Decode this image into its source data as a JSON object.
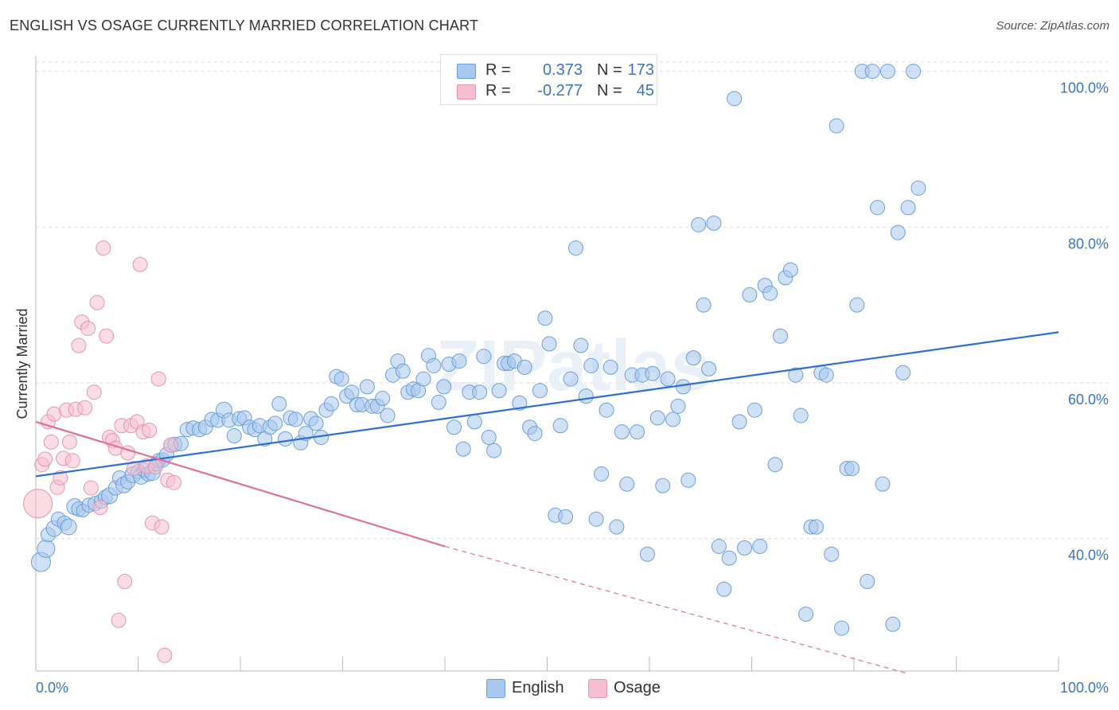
{
  "title": "ENGLISH VS OSAGE CURRENTLY MARRIED CORRELATION CHART",
  "source": "Source: ZipAtlas.com",
  "watermark": "ZIPatlas",
  "legend": {
    "rows": [
      {
        "r_label": "R =",
        "r_value": "0.373",
        "n_label": "N =",
        "n_value": "173",
        "color": "#a9c8ef",
        "border": "#6a9fdc"
      },
      {
        "r_label": "R =",
        "r_value": "-0.277",
        "n_label": "N =",
        "n_value": "45",
        "color": "#f6bfd0",
        "border": "#e793b0"
      }
    ],
    "bottom": [
      {
        "label": "English",
        "color": "#a9c8ef",
        "border": "#6a9fdc"
      },
      {
        "label": "Osage",
        "color": "#f6bfd0",
        "border": "#e793b0"
      }
    ]
  },
  "chart_data": {
    "type": "scatter",
    "title": "ENGLISH VS OSAGE CURRENTLY MARRIED CORRELATION CHART",
    "xlabel": "",
    "ylabel": "Currently Married",
    "xlim": [
      0,
      100
    ],
    "ylim": [
      23,
      102
    ],
    "x_tick_labels": [
      "0.0%",
      "100.0%"
    ],
    "y_ticks": [
      40,
      60,
      80,
      100
    ],
    "y_tick_labels": [
      "40.0%",
      "60.0%",
      "80.0%",
      "100.0%"
    ],
    "grid": true,
    "legend_position": "top-center",
    "colors": {
      "english_fill": "#a9c8ef",
      "english_edge": "#6a9fdc",
      "english_line": "#2f6fd1",
      "osage_fill": "#f6bfd0",
      "osage_edge": "#e793b0",
      "osage_line": "#e0709a",
      "axis_label": "#3b74c7"
    },
    "series": [
      {
        "name": "English",
        "trend": {
          "x": [
            0,
            100
          ],
          "y": [
            48.0,
            66.5
          ],
          "dashed_from": null
        },
        "points": [
          [
            0.5,
            37.0,
            12
          ],
          [
            1.0,
            38.7,
            11
          ],
          [
            1.2,
            40.5,
            9
          ],
          [
            1.8,
            41.3,
            10
          ],
          [
            2.2,
            42.5,
            9
          ],
          [
            2.8,
            42.0,
            9
          ],
          [
            3.2,
            41.5,
            10
          ],
          [
            3.8,
            44.1,
            10
          ],
          [
            4.2,
            43.8,
            9
          ],
          [
            4.6,
            43.6,
            8
          ],
          [
            5.2,
            44.3,
            9
          ],
          [
            5.8,
            44.5,
            9
          ],
          [
            6.4,
            44.8,
            9
          ],
          [
            6.8,
            45.3,
            9
          ],
          [
            7.2,
            45.5,
            10
          ],
          [
            7.8,
            46.5,
            9
          ],
          [
            8.2,
            47.8,
            9
          ],
          [
            8.6,
            46.9,
            10
          ],
          [
            9.0,
            47.3,
            9
          ],
          [
            9.5,
            48.2,
            10
          ],
          [
            10.0,
            48.6,
            9
          ],
          [
            10.3,
            48.0,
            10
          ],
          [
            10.6,
            48.8,
            9
          ],
          [
            11.0,
            48.3,
            9
          ],
          [
            11.4,
            48.5,
            10
          ],
          [
            11.8,
            49.6,
            9
          ],
          [
            12.0,
            50.0,
            9
          ],
          [
            12.4,
            50.1,
            9
          ],
          [
            12.8,
            50.8,
            9
          ],
          [
            13.2,
            52.0,
            9
          ],
          [
            13.6,
            52.1,
            9
          ],
          [
            14.2,
            52.2,
            9
          ],
          [
            14.8,
            54.0,
            9
          ],
          [
            15.4,
            54.2,
            9
          ],
          [
            16.0,
            54.0,
            9
          ],
          [
            16.6,
            54.3,
            9
          ],
          [
            17.2,
            55.3,
            9
          ],
          [
            17.8,
            55.2,
            9
          ],
          [
            18.4,
            56.5,
            10
          ],
          [
            18.9,
            55.2,
            9
          ],
          [
            19.4,
            53.2,
            9
          ],
          [
            19.9,
            55.4,
            9
          ],
          [
            20.4,
            55.5,
            9
          ],
          [
            20.9,
            54.3,
            9
          ],
          [
            21.4,
            54.0,
            9
          ],
          [
            21.9,
            54.5,
            9
          ],
          [
            22.4,
            52.8,
            9
          ],
          [
            22.9,
            54.3,
            9
          ],
          [
            23.4,
            54.8,
            9
          ],
          [
            23.8,
            57.3,
            9
          ],
          [
            24.4,
            52.8,
            9
          ],
          [
            24.9,
            55.5,
            9
          ],
          [
            25.4,
            55.3,
            9
          ],
          [
            25.9,
            52.3,
            9
          ],
          [
            26.4,
            53.5,
            9
          ],
          [
            26.9,
            55.4,
            9
          ],
          [
            27.4,
            54.8,
            9
          ],
          [
            27.9,
            53.0,
            9
          ],
          [
            28.4,
            56.5,
            9
          ],
          [
            28.9,
            57.3,
            9
          ],
          [
            29.4,
            60.8,
            9
          ],
          [
            29.9,
            60.5,
            9
          ],
          [
            30.4,
            58.3,
            9
          ],
          [
            30.9,
            58.8,
            9
          ],
          [
            31.4,
            57.2,
            9
          ],
          [
            31.9,
            57.2,
            9
          ],
          [
            32.4,
            59.5,
            9
          ],
          [
            32.9,
            57.0,
            9
          ],
          [
            33.4,
            57.0,
            9
          ],
          [
            33.9,
            58.0,
            9
          ],
          [
            34.4,
            55.8,
            9
          ],
          [
            34.9,
            61.0,
            9
          ],
          [
            35.4,
            62.8,
            9
          ],
          [
            35.9,
            61.5,
            9
          ],
          [
            36.4,
            58.8,
            9
          ],
          [
            36.9,
            59.2,
            9
          ],
          [
            37.4,
            59.0,
            9
          ],
          [
            37.9,
            60.5,
            9
          ],
          [
            38.4,
            63.5,
            9
          ],
          [
            38.9,
            62.2,
            9
          ],
          [
            39.4,
            57.5,
            9
          ],
          [
            39.9,
            59.5,
            9
          ],
          [
            40.4,
            62.4,
            9
          ],
          [
            40.9,
            54.3,
            9
          ],
          [
            41.4,
            62.8,
            9
          ],
          [
            41.8,
            51.5,
            9
          ],
          [
            42.4,
            58.8,
            9
          ],
          [
            42.9,
            55.0,
            9
          ],
          [
            43.4,
            58.8,
            9
          ],
          [
            43.8,
            63.4,
            9
          ],
          [
            44.3,
            53.0,
            9
          ],
          [
            44.8,
            51.3,
            9
          ],
          [
            45.3,
            59.0,
            9
          ],
          [
            45.8,
            62.5,
            9
          ],
          [
            46.2,
            62.5,
            9
          ],
          [
            46.8,
            62.8,
            9
          ],
          [
            47.3,
            57.4,
            9
          ],
          [
            47.8,
            62.0,
            9
          ],
          [
            48.3,
            54.3,
            9
          ],
          [
            48.8,
            53.5,
            9
          ],
          [
            49.3,
            59.0,
            9
          ],
          [
            49.8,
            68.3,
            9
          ],
          [
            50.2,
            65.0,
            9
          ],
          [
            50.8,
            43.0,
            9
          ],
          [
            51.3,
            54.5,
            9
          ],
          [
            51.8,
            42.8,
            9
          ],
          [
            52.3,
            60.5,
            9
          ],
          [
            52.8,
            77.3,
            9
          ],
          [
            53.3,
            64.8,
            9
          ],
          [
            53.8,
            58.3,
            9
          ],
          [
            54.3,
            62.2,
            9
          ],
          [
            54.8,
            42.5,
            9
          ],
          [
            55.3,
            48.3,
            9
          ],
          [
            55.8,
            56.5,
            9
          ],
          [
            56.2,
            62.0,
            9
          ],
          [
            56.8,
            41.5,
            9
          ],
          [
            57.3,
            53.7,
            9
          ],
          [
            57.8,
            47.0,
            9
          ],
          [
            58.3,
            61.0,
            9
          ],
          [
            58.8,
            53.7,
            9
          ],
          [
            59.3,
            61.0,
            9
          ],
          [
            59.8,
            38.0,
            9
          ],
          [
            60.3,
            61.2,
            9
          ],
          [
            60.8,
            55.5,
            9
          ],
          [
            61.3,
            46.8,
            9
          ],
          [
            61.8,
            60.5,
            9
          ],
          [
            62.3,
            55.3,
            9
          ],
          [
            62.8,
            57.0,
            9
          ],
          [
            63.3,
            59.5,
            9
          ],
          [
            63.8,
            47.5,
            9
          ],
          [
            64.3,
            63.2,
            9
          ],
          [
            64.8,
            80.3,
            9
          ],
          [
            65.3,
            70.0,
            9
          ],
          [
            65.8,
            61.8,
            9
          ],
          [
            66.3,
            80.5,
            9
          ],
          [
            66.8,
            39.0,
            9
          ],
          [
            67.3,
            33.5,
            9
          ],
          [
            67.8,
            37.5,
            9
          ],
          [
            68.3,
            96.5,
            9
          ],
          [
            68.8,
            55.0,
            9
          ],
          [
            69.3,
            38.8,
            9
          ],
          [
            69.8,
            71.3,
            9
          ],
          [
            70.3,
            56.5,
            9
          ],
          [
            70.8,
            39.0,
            9
          ],
          [
            71.3,
            72.5,
            9
          ],
          [
            71.8,
            71.5,
            9
          ],
          [
            72.3,
            49.5,
            9
          ],
          [
            72.8,
            66.0,
            9
          ],
          [
            73.3,
            73.5,
            9
          ],
          [
            73.8,
            74.5,
            9
          ],
          [
            74.3,
            61.0,
            9
          ],
          [
            74.8,
            55.8,
            9
          ],
          [
            75.3,
            30.3,
            9
          ],
          [
            75.8,
            41.5,
            9
          ],
          [
            76.3,
            41.5,
            9
          ],
          [
            76.8,
            61.3,
            9
          ],
          [
            77.3,
            61.0,
            9
          ],
          [
            77.8,
            38.0,
            9
          ],
          [
            78.3,
            93.0,
            9
          ],
          [
            78.8,
            28.5,
            9
          ],
          [
            79.3,
            49.0,
            9
          ],
          [
            79.8,
            49.0,
            9
          ],
          [
            80.3,
            70.0,
            9
          ],
          [
            80.8,
            100.0,
            9
          ],
          [
            81.3,
            34.5,
            9
          ],
          [
            81.8,
            100.0,
            9
          ],
          [
            82.3,
            82.5,
            9
          ],
          [
            82.8,
            47.0,
            9
          ],
          [
            83.3,
            100.0,
            9
          ],
          [
            83.8,
            29.0,
            9
          ],
          [
            84.3,
            79.3,
            9
          ],
          [
            84.8,
            61.3,
            9
          ],
          [
            85.3,
            82.5,
            9
          ],
          [
            85.8,
            100.0,
            9
          ],
          [
            86.3,
            85.0,
            9
          ]
        ]
      },
      {
        "name": "Osage",
        "trend": {
          "x": [
            0,
            40,
            100
          ],
          "y": [
            55.0,
            39.0,
            23.0
          ],
          "dashed_from": 40
        },
        "points": [
          [
            0.2,
            44.5,
            18
          ],
          [
            0.6,
            49.5,
            9
          ],
          [
            0.9,
            50.2,
            9
          ],
          [
            1.2,
            55.0,
            9
          ],
          [
            1.5,
            52.4,
            9
          ],
          [
            1.8,
            56.0,
            9
          ],
          [
            2.1,
            46.6,
            9
          ],
          [
            2.4,
            47.8,
            9
          ],
          [
            2.7,
            50.3,
            9
          ],
          [
            3.0,
            56.5,
            9
          ],
          [
            3.3,
            52.4,
            9
          ],
          [
            3.6,
            50.0,
            9
          ],
          [
            3.9,
            56.6,
            9
          ],
          [
            4.2,
            64.8,
            9
          ],
          [
            4.5,
            67.8,
            9
          ],
          [
            4.8,
            56.8,
            9
          ],
          [
            5.1,
            67.0,
            9
          ],
          [
            5.4,
            46.5,
            9
          ],
          [
            5.7,
            58.8,
            9
          ],
          [
            6.0,
            70.3,
            9
          ],
          [
            6.3,
            44.0,
            9
          ],
          [
            6.6,
            77.3,
            9
          ],
          [
            6.9,
            66.0,
            9
          ],
          [
            7.2,
            53.0,
            9
          ],
          [
            7.5,
            52.6,
            9
          ],
          [
            7.8,
            51.6,
            9
          ],
          [
            8.1,
            29.5,
            9
          ],
          [
            8.4,
            54.5,
            9
          ],
          [
            8.7,
            34.5,
            9
          ],
          [
            9.0,
            51.0,
            9
          ],
          [
            9.3,
            54.5,
            9
          ],
          [
            9.6,
            49.0,
            9
          ],
          [
            9.9,
            55.0,
            9
          ],
          [
            10.2,
            75.2,
            9
          ],
          [
            10.5,
            53.7,
            9
          ],
          [
            10.8,
            49.3,
            9
          ],
          [
            11.1,
            53.9,
            9
          ],
          [
            11.4,
            42.0,
            9
          ],
          [
            11.7,
            49.2,
            9
          ],
          [
            12.0,
            60.5,
            9
          ],
          [
            12.3,
            41.5,
            9
          ],
          [
            12.6,
            25.0,
            9
          ],
          [
            12.9,
            47.5,
            9
          ],
          [
            13.2,
            52.0,
            9
          ],
          [
            13.5,
            47.2,
            9
          ]
        ]
      }
    ]
  }
}
